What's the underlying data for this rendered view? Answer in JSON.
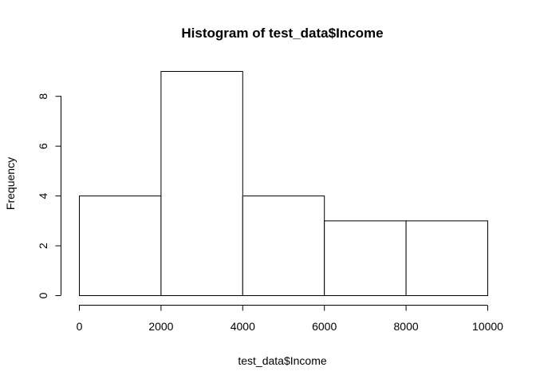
{
  "chart_data": {
    "type": "bar",
    "title": "Histogram of test_data$Income",
    "xlabel": "test_data$Income",
    "ylabel": "Frequency",
    "bins": [
      {
        "start": 0,
        "end": 2000,
        "count": 4
      },
      {
        "start": 2000,
        "end": 4000,
        "count": 9
      },
      {
        "start": 4000,
        "end": 6000,
        "count": 4
      },
      {
        "start": 6000,
        "end": 8000,
        "count": 3
      },
      {
        "start": 8000,
        "end": 10000,
        "count": 3
      }
    ],
    "xlim": [
      0,
      10000
    ],
    "ylim": [
      0,
      9
    ],
    "x_ticks": [
      0,
      2000,
      4000,
      6000,
      8000,
      10000
    ],
    "y_ticks": [
      0,
      2,
      4,
      6,
      8
    ],
    "grid": false,
    "legend": "none"
  }
}
